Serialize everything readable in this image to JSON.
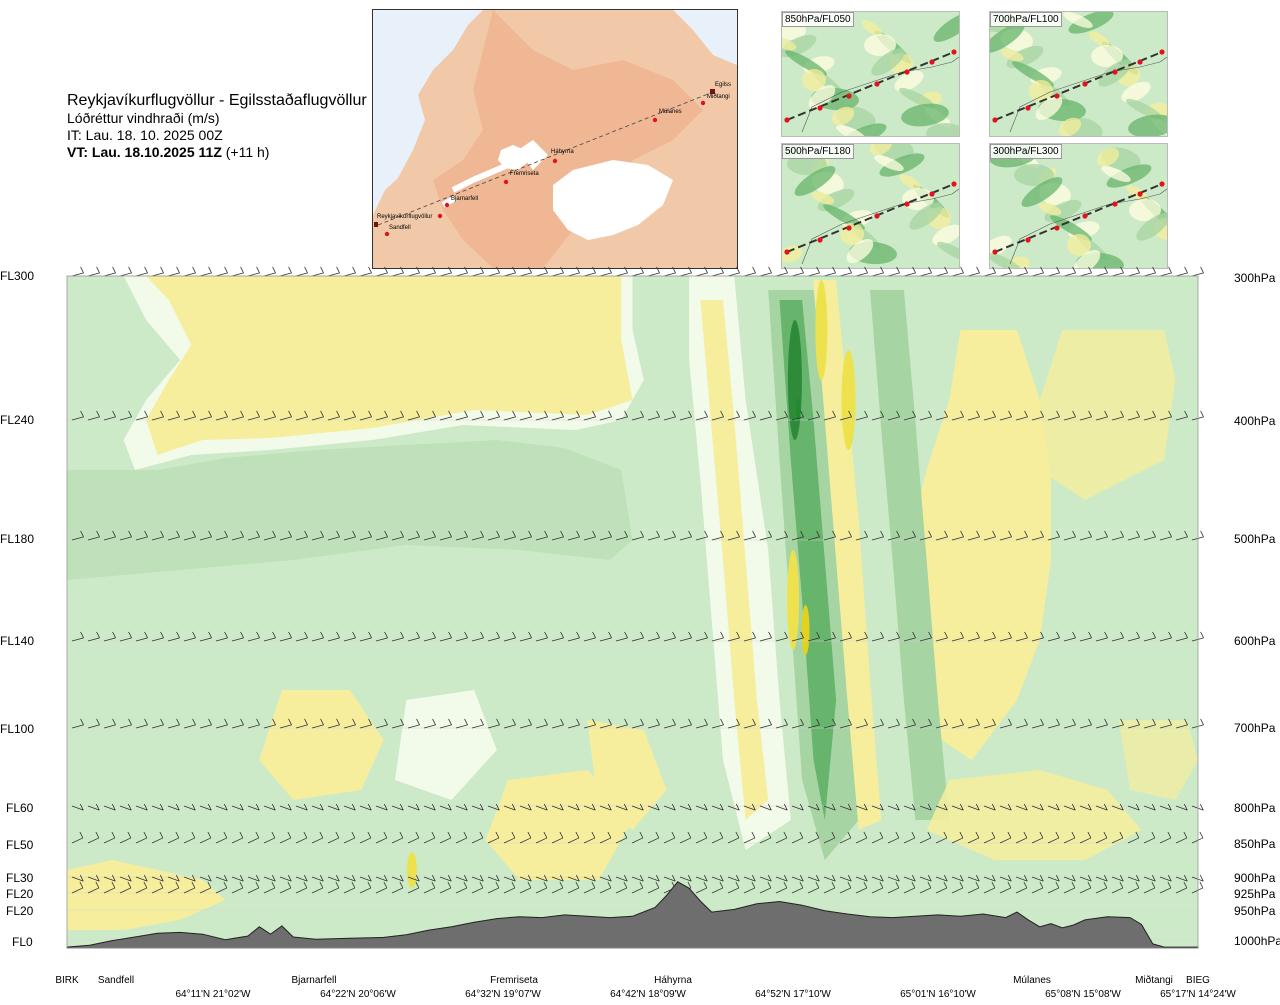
{
  "header": {
    "route": "Reykjavíkurflugvöllur - Egilsstaðaflugvöllur",
    "parameter": "Lóðréttur vindhraði (m/s)",
    "issue_time": "IT: Lau. 18. 10. 2025 00Z",
    "valid_time_bold": "VT: Lau. 18.10.2025 11Z",
    "valid_offset": " (+11 h)"
  },
  "route_map": {
    "waypoints": [
      "Reykjavíkurflugvöllur",
      "Sandfell",
      "Bjarnarfell",
      "Fremriseta",
      "Háhyrna",
      "Múlanes",
      "Egilss",
      "Miðtangi"
    ],
    "colors": {
      "land": "#f2c9a8",
      "ice": "#ffffff",
      "sea": "#e8f1fa",
      "route": "#444444",
      "waypoint": "#e0141e"
    }
  },
  "level_maps": [
    {
      "label": "850hPa/FL050"
    },
    {
      "label": "700hPa/FL100"
    },
    {
      "label": "500hPa/FL180"
    },
    {
      "label": "300hPa/FL300"
    }
  ],
  "chart_data": {
    "type": "heatmap",
    "title": "Reykjavíkurflugvöllur - Egilsstaðaflugvöllur",
    "quantity": "Lóðréttur vindhraði (m/s)",
    "x_axis": {
      "places": [
        "BIRK",
        "Sandfell",
        "Bjarnarfell",
        "Fremriseta",
        "Háhyrna",
        "Múlanes",
        "Miðtangi",
        "BIEG"
      ],
      "place_positions": [
        0.0,
        0.04,
        0.21,
        0.39,
        0.53,
        0.85,
        0.95,
        0.99
      ],
      "coordinates": [
        "64°11'N 21°02'W",
        "64°22'N 20°06'W",
        "64°32'N 19°07'W",
        "64°42'N 18°09'W",
        "64°52'N 17°10'W",
        "65°01'N 16°10'W",
        "65°08'N 15°08'W",
        "65°17'N 14°24'W"
      ],
      "coordinate_positions": [
        0.1,
        0.23,
        0.36,
        0.49,
        0.62,
        0.75,
        0.88,
        0.99
      ]
    },
    "y_axis_left": {
      "labels": [
        "FL300",
        "FL240",
        "FL180",
        "FL140",
        "FL100",
        "FL60",
        "FL50",
        "FL30",
        "FL20",
        "FL20",
        "FL0"
      ]
    },
    "y_axis_right": {
      "labels": [
        "300hPa",
        "400hPa",
        "500hPa",
        "600hPa",
        "700hPa",
        "800hPa",
        "850hPa",
        "900hPa",
        "925hPa",
        "950hPa",
        "1000hPa"
      ],
      "pressure_hpa": [
        300,
        400,
        500,
        600,
        700,
        800,
        850,
        900,
        925,
        950,
        1000
      ]
    },
    "color_classes": {
      "strong_down": "#2e8b3a",
      "down": "#67b46c",
      "weak_down": "#a7d4a3",
      "slight_down": "#cdeac8",
      "near_zero": "#f2fae9",
      "slight_up": "#fffde0",
      "weak_up": "#f6ee9c",
      "up": "#ede24e",
      "strong_up": "#e3d21d"
    },
    "terrain_color": "#6e6e6e",
    "terrain_profile": [
      [
        0.0,
        0.2
      ],
      [
        0.02,
        0.6
      ],
      [
        0.04,
        1.6
      ],
      [
        0.06,
        2.4
      ],
      [
        0.08,
        3.2
      ],
      [
        0.1,
        3.4
      ],
      [
        0.12,
        3.0
      ],
      [
        0.14,
        1.8
      ],
      [
        0.16,
        2.6
      ],
      [
        0.17,
        4.6
      ],
      [
        0.18,
        3.0
      ],
      [
        0.19,
        4.8
      ],
      [
        0.2,
        2.4
      ],
      [
        0.22,
        1.9
      ],
      [
        0.25,
        2.1
      ],
      [
        0.28,
        2.3
      ],
      [
        0.3,
        2.9
      ],
      [
        0.32,
        3.9
      ],
      [
        0.34,
        4.6
      ],
      [
        0.36,
        5.6
      ],
      [
        0.38,
        6.4
      ],
      [
        0.4,
        6.8
      ],
      [
        0.42,
        6.6
      ],
      [
        0.44,
        7.2
      ],
      [
        0.46,
        6.9
      ],
      [
        0.48,
        6.6
      ],
      [
        0.5,
        6.9
      ],
      [
        0.52,
        8.8
      ],
      [
        0.53,
        11.4
      ],
      [
        0.54,
        14.4
      ],
      [
        0.55,
        13.0
      ],
      [
        0.56,
        10.2
      ],
      [
        0.57,
        7.8
      ],
      [
        0.59,
        8.4
      ],
      [
        0.61,
        9.6
      ],
      [
        0.63,
        10.1
      ],
      [
        0.65,
        9.3
      ],
      [
        0.67,
        8.1
      ],
      [
        0.69,
        7.4
      ],
      [
        0.71,
        6.8
      ],
      [
        0.73,
        6.6
      ],
      [
        0.75,
        6.9
      ],
      [
        0.77,
        7.2
      ],
      [
        0.79,
        6.9
      ],
      [
        0.81,
        7.4
      ],
      [
        0.83,
        6.6
      ],
      [
        0.84,
        7.8
      ],
      [
        0.85,
        6.1
      ],
      [
        0.86,
        4.6
      ],
      [
        0.87,
        5.3
      ],
      [
        0.88,
        4.4
      ],
      [
        0.89,
        5.0
      ],
      [
        0.9,
        6.1
      ],
      [
        0.92,
        6.8
      ],
      [
        0.94,
        6.6
      ],
      [
        0.95,
        5.1
      ],
      [
        0.96,
        0.9
      ],
      [
        0.97,
        0.2
      ],
      [
        1.0,
        0.2
      ]
    ]
  }
}
